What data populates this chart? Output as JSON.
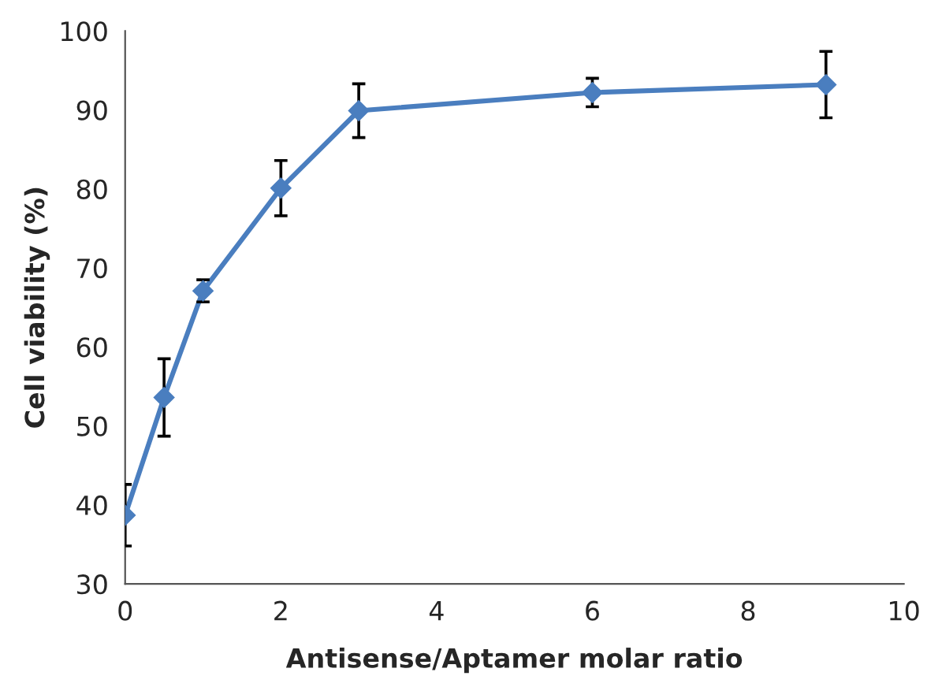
{
  "chart_data": {
    "type": "line",
    "xlabel": "Antisense/Aptamer molar ratio",
    "ylabel": "Cell viability (%)",
    "x": [
      0,
      0.5,
      1,
      2,
      3,
      6,
      9
    ],
    "series": [
      {
        "color": "#4a7ebf",
        "values": [
          38.7,
          53.6,
          67.1,
          80.1,
          89.9,
          92.2,
          93.2
        ],
        "errors": [
          3.9,
          4.9,
          1.4,
          3.5,
          3.4,
          1.8,
          4.2
        ]
      }
    ],
    "xlim": [
      0,
      10
    ],
    "xticks": [
      0,
      2,
      4,
      6,
      8,
      10
    ],
    "ylim": [
      30,
      100
    ],
    "yticks": [
      30,
      40,
      50,
      60,
      70,
      80,
      90,
      100
    ],
    "grid": false,
    "legend": false,
    "marker": "diamond",
    "line_style": "solid"
  }
}
